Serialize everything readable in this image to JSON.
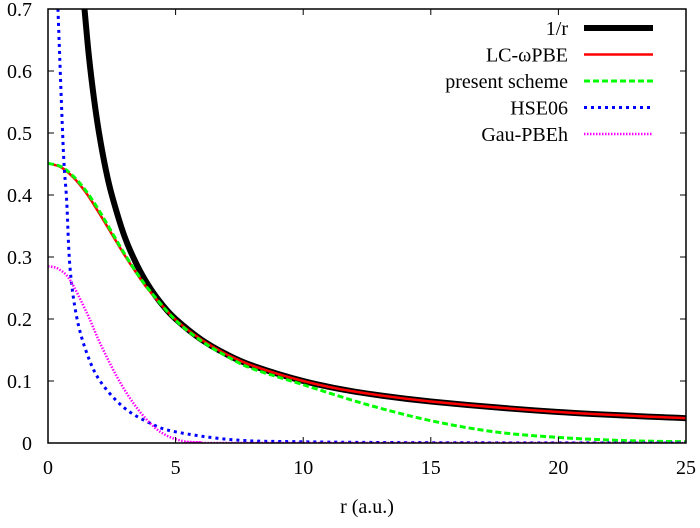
{
  "chart_data": {
    "type": "line",
    "title": "",
    "xlabel": "r (a.u.)",
    "ylabel": "",
    "xlim": [
      0,
      25
    ],
    "ylim": [
      0,
      0.7
    ],
    "xticks": [
      "0",
      "5",
      "10",
      "15",
      "20",
      "25"
    ],
    "yticks": [
      "0",
      "0.1",
      "0.2",
      "0.3",
      "0.4",
      "0.5",
      "0.6",
      "0.7"
    ],
    "grid": false,
    "legend_position": "top-right",
    "series": [
      {
        "name": "1/r",
        "color": "#000000",
        "style": "solid-thick",
        "x": [
          1.43,
          1.6,
          1.8,
          2,
          2.25,
          2.5,
          3,
          3.5,
          4,
          4.5,
          5,
          6,
          7,
          8,
          10,
          12,
          15,
          20,
          25
        ],
        "y": [
          0.7,
          0.625,
          0.556,
          0.5,
          0.444,
          0.4,
          0.333,
          0.286,
          0.25,
          0.222,
          0.2,
          0.167,
          0.143,
          0.125,
          0.1,
          0.083,
          0.067,
          0.05,
          0.04
        ]
      },
      {
        "name": "LC-ωPBE",
        "color": "#ff0000",
        "style": "solid",
        "x": [
          0,
          0.5,
          1,
          1.5,
          2,
          2.5,
          3,
          3.5,
          4,
          5,
          6,
          7,
          8,
          10,
          12,
          15,
          20,
          25
        ],
        "y": [
          0.451,
          0.445,
          0.428,
          0.403,
          0.371,
          0.337,
          0.303,
          0.272,
          0.244,
          0.199,
          0.167,
          0.143,
          0.125,
          0.1,
          0.083,
          0.067,
          0.05,
          0.04
        ]
      },
      {
        "name": "present scheme",
        "color": "#00ff00",
        "style": "dashed",
        "x": [
          0,
          0.5,
          1,
          1.5,
          2,
          2.5,
          3,
          3.5,
          4,
          5,
          6,
          7,
          8,
          10,
          12.5,
          15,
          17.5,
          20,
          22.5,
          25
        ],
        "y": [
          0.451,
          0.446,
          0.43,
          0.406,
          0.375,
          0.34,
          0.305,
          0.273,
          0.245,
          0.198,
          0.165,
          0.14,
          0.12,
          0.094,
          0.062,
          0.036,
          0.018,
          0.009,
          0.004,
          0.002
        ]
      },
      {
        "name": "HSE06",
        "color": "#0000ff",
        "style": "dotted",
        "x": [
          0.39,
          0.6,
          0.73,
          0.86,
          1.12,
          1.52,
          2.04,
          2.95,
          4,
          5,
          7.3,
          10,
          15,
          25
        ],
        "y": [
          0.7,
          0.473,
          0.392,
          0.284,
          0.204,
          0.145,
          0.1,
          0.058,
          0.032,
          0.018,
          0.005,
          0.002,
          0.0005,
          0
        ]
      },
      {
        "name": "Gau-PBEh",
        "color": "#ff00ff",
        "style": "dotted-dense",
        "x": [
          0,
          0.4,
          0.86,
          1.52,
          2.04,
          2.7,
          3.35,
          4,
          4.6,
          5.3,
          6,
          7,
          25
        ],
        "y": [
          0.285,
          0.281,
          0.263,
          0.21,
          0.161,
          0.107,
          0.064,
          0.032,
          0.013,
          0.003,
          0.001,
          0,
          0
        ]
      }
    ]
  }
}
